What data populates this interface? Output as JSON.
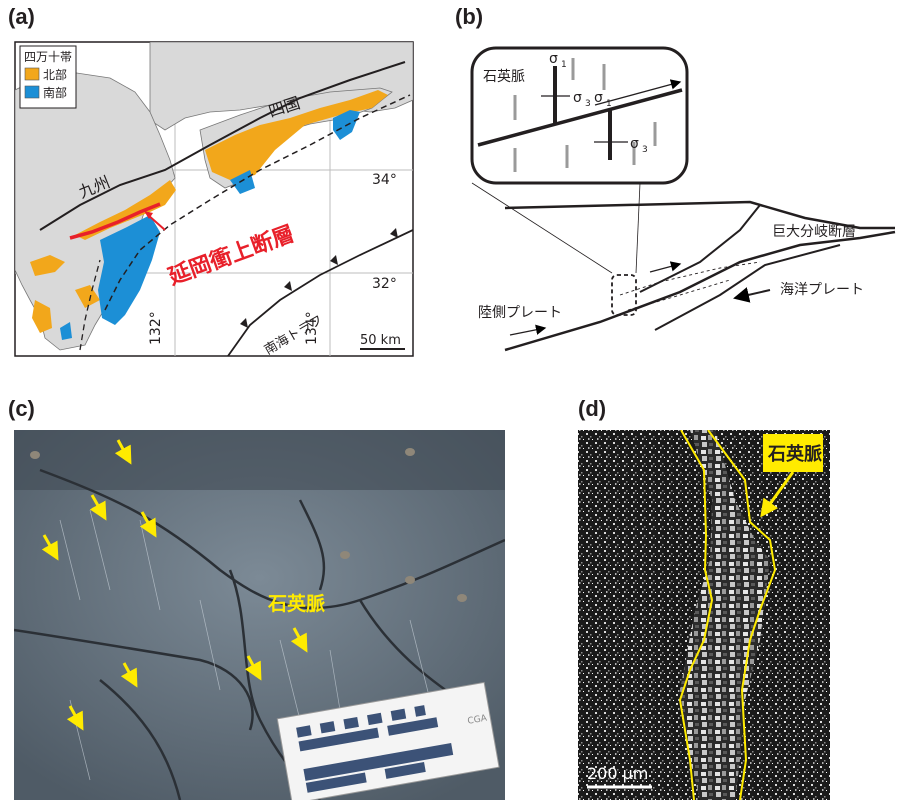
{
  "panels": {
    "a": "(a)",
    "b": "(b)",
    "c": "(c)",
    "d": "(d)"
  },
  "map_a": {
    "legend_title": "四万十帯",
    "legend_north": "北部",
    "legend_south": "南部",
    "label_kyushu": "九州",
    "label_shikoku": "四国",
    "label_fault": "延岡衝上断層",
    "label_trough": "南海トラフ",
    "lat_34": "34°",
    "lat_32": "32°",
    "lon_132": "132°",
    "lon_134": "134°",
    "scale": "50 km",
    "colors": {
      "north": "#f2a71b",
      "south": "#1c8fd6",
      "land": "#d9d9d9",
      "fault": "#e8202a"
    }
  },
  "diagram_b": {
    "quartz_vein": "石英脈",
    "sigma1": "σ",
    "sigma1_sub": "1",
    "sigma3": "σ",
    "sigma3_sub": "3",
    "splay_fault": "巨大分岐断層",
    "oceanic_plate": "海洋プレート",
    "land_plate": "陸側プレート"
  },
  "photo_c": {
    "quartz_vein": "石英脈",
    "card_text": "CGA",
    "colors": {
      "arrow": "#ffeb00"
    }
  },
  "photo_d": {
    "quartz_vein": "石英脈",
    "scale": "200 μm",
    "colors": {
      "outline": "#ffeb00"
    }
  }
}
